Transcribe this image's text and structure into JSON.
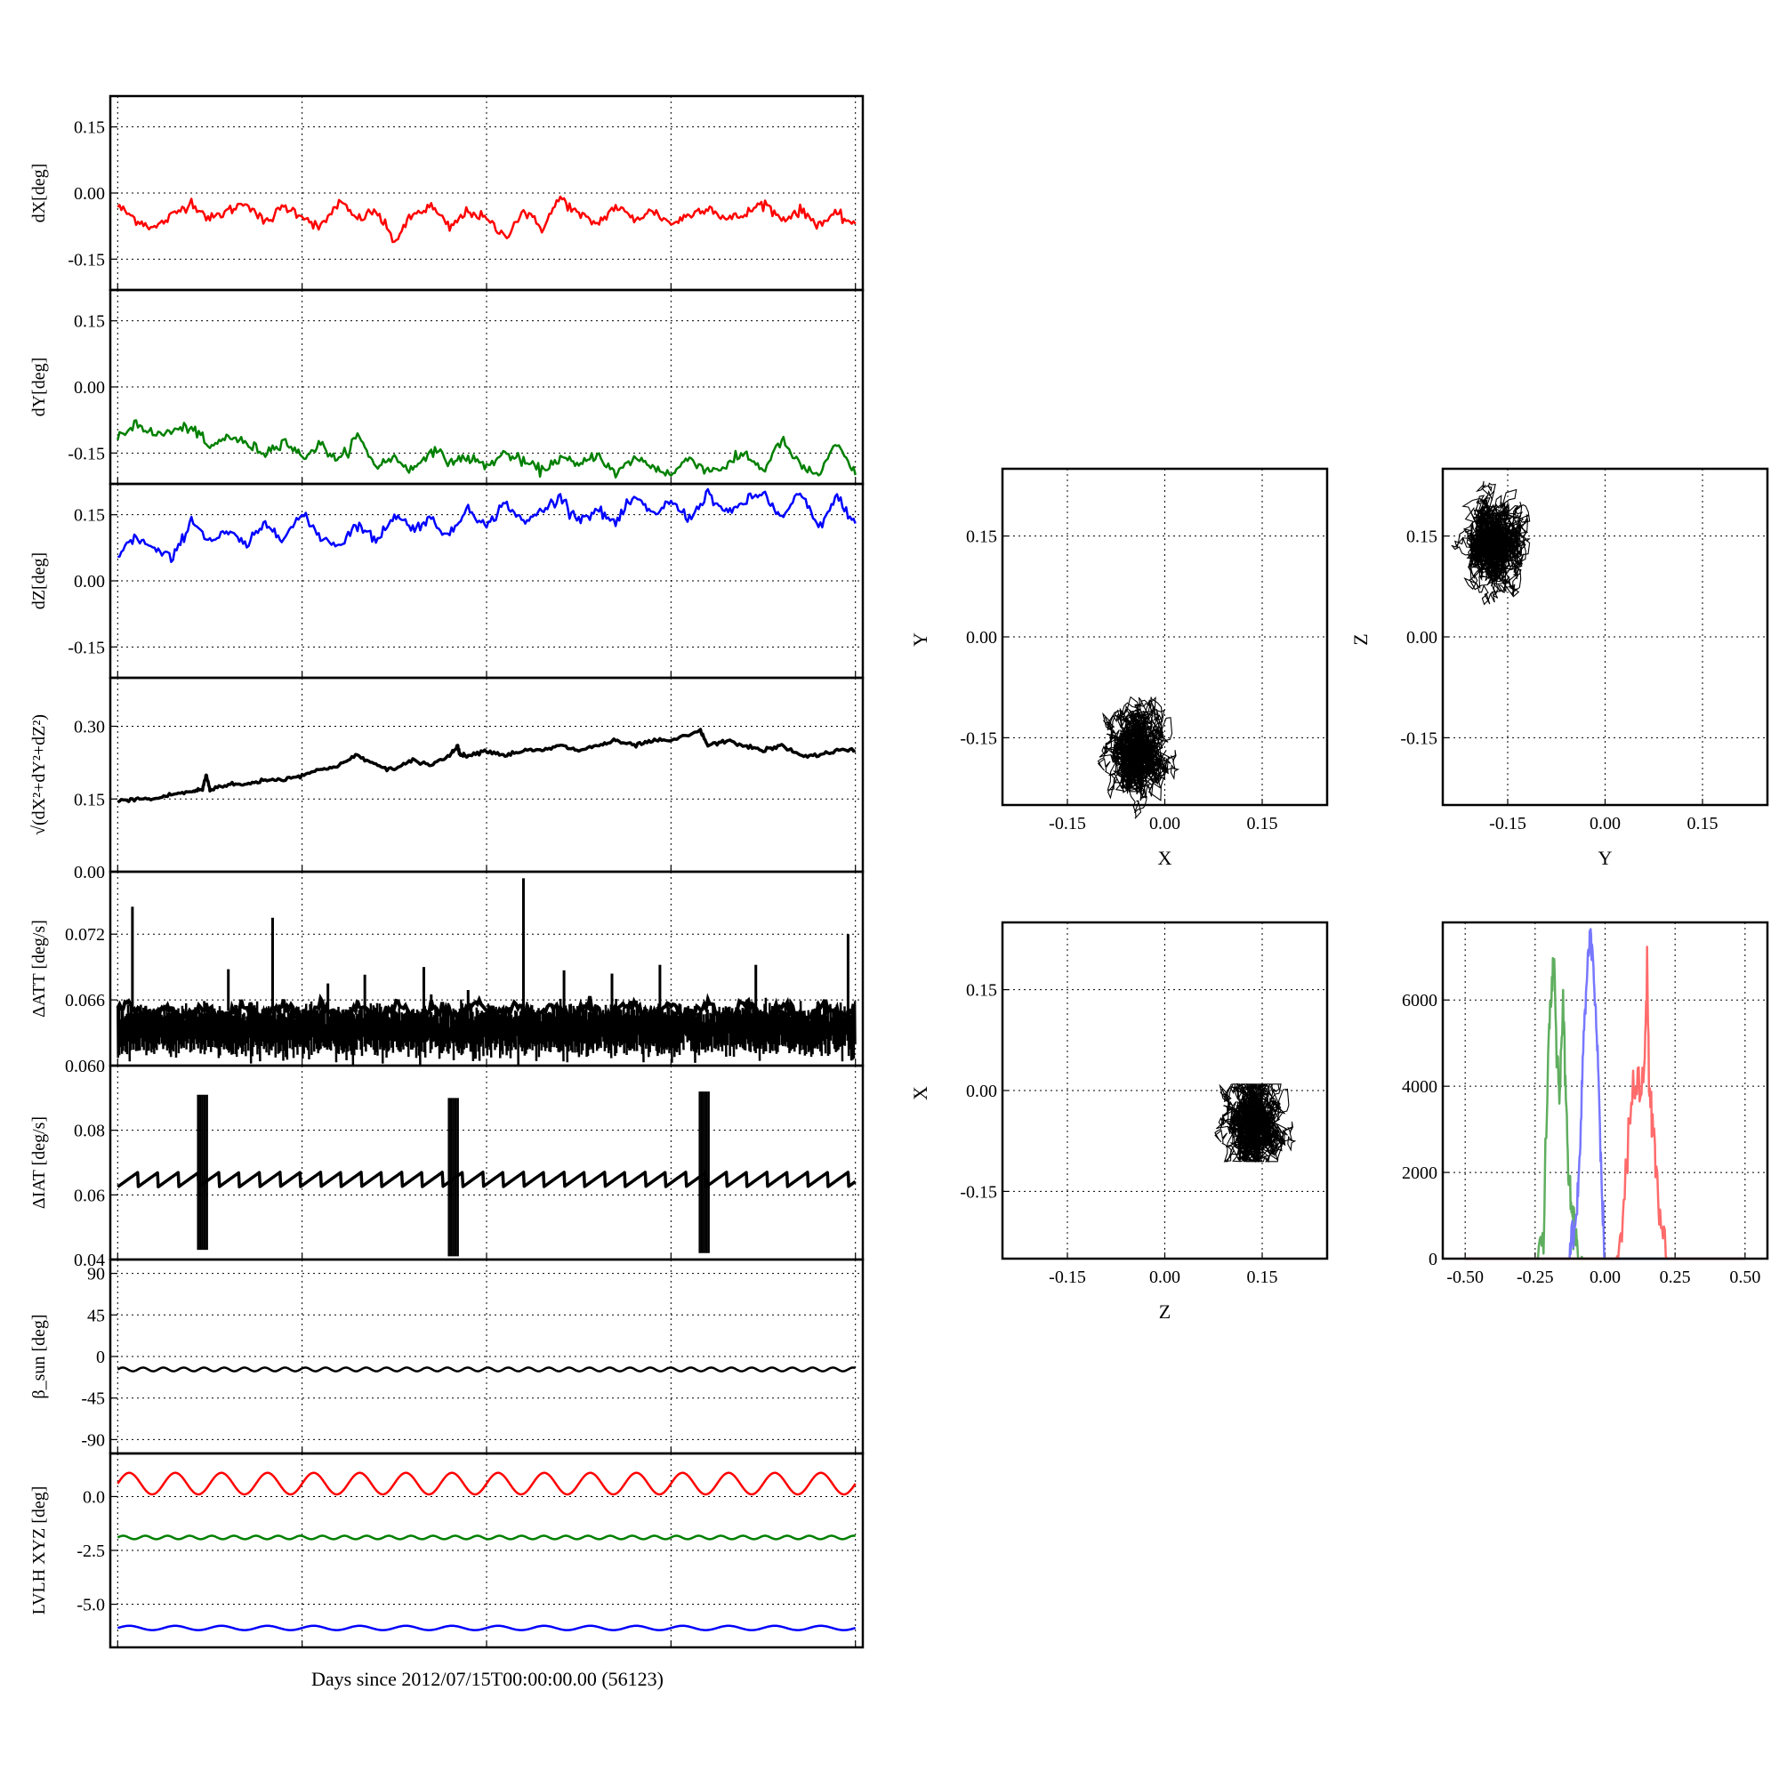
{
  "figure": {
    "xlabel": "Days since 2012/07/15T00:00:00.00 (56123)"
  },
  "colors": {
    "red": "#ff0000",
    "green": "#008000",
    "blue": "#0000ff",
    "black": "#000000"
  },
  "chart_data": [
    {
      "id": "dX",
      "type": "line",
      "ylabel": "dX[deg]",
      "ylim": [
        -0.22,
        0.22
      ],
      "yticks": [
        "0.15",
        "0.00",
        "-0.15"
      ],
      "ytick_values": [
        0.15,
        0,
        -0.15
      ],
      "grid": true,
      "series": [
        {
          "color": "#ff0000",
          "x": [
            0,
            0.5,
            1,
            1.5,
            2,
            2.5,
            3,
            3.5,
            4,
            4.5,
            5,
            5.5,
            6,
            6.5,
            7,
            7.5,
            8,
            8.5,
            9,
            9.5,
            10,
            10.5,
            11,
            11.5,
            12,
            12.5,
            13,
            13.5,
            14,
            14.5,
            15,
            15.5,
            16,
            16.5,
            17,
            17.5,
            18,
            18.5,
            19,
            19.5,
            20
          ],
          "y": [
            -0.03,
            -0.06,
            -0.08,
            -0.05,
            -0.02,
            -0.06,
            -0.04,
            -0.02,
            -0.07,
            -0.03,
            -0.05,
            -0.08,
            -0.02,
            -0.06,
            -0.04,
            -0.11,
            -0.05,
            -0.03,
            -0.08,
            -0.04,
            -0.06,
            -0.1,
            -0.04,
            -0.08,
            -0.01,
            -0.05,
            -0.07,
            -0.03,
            -0.06,
            -0.04,
            -0.07,
            -0.05,
            -0.03,
            -0.06,
            -0.05,
            -0.02,
            -0.06,
            -0.04,
            -0.07,
            -0.05,
            -0.07
          ]
        }
      ]
    },
    {
      "id": "dY",
      "type": "line",
      "ylabel": "dY[deg]",
      "ylim": [
        -0.22,
        0.22
      ],
      "yticks": [
        "0.15",
        "0.00",
        "-0.15"
      ],
      "ytick_values": [
        0.15,
        0,
        -0.15
      ],
      "grid": true,
      "series": [
        {
          "color": "#008000",
          "x": [
            0,
            0.5,
            1,
            1.5,
            2,
            2.5,
            3,
            3.5,
            4,
            4.5,
            5,
            5.5,
            6,
            6.5,
            7,
            7.5,
            8,
            8.5,
            9,
            9.5,
            10,
            10.5,
            11,
            11.5,
            12,
            12.5,
            13,
            13.5,
            14,
            14.5,
            15,
            15.5,
            16,
            16.5,
            17,
            17.5,
            18,
            18.5,
            19,
            19.5,
            20
          ],
          "y": [
            -0.12,
            -0.08,
            -0.11,
            -0.1,
            -0.09,
            -0.14,
            -0.11,
            -0.13,
            -0.15,
            -0.12,
            -0.16,
            -0.13,
            -0.17,
            -0.11,
            -0.18,
            -0.16,
            -0.19,
            -0.14,
            -0.17,
            -0.16,
            -0.18,
            -0.15,
            -0.17,
            -0.19,
            -0.16,
            -0.18,
            -0.15,
            -0.2,
            -0.16,
            -0.18,
            -0.2,
            -0.16,
            -0.19,
            -0.18,
            -0.15,
            -0.19,
            -0.12,
            -0.18,
            -0.2,
            -0.13,
            -0.2
          ]
        }
      ]
    },
    {
      "id": "dZ",
      "type": "line",
      "ylabel": "dZ[deg]",
      "ylim": [
        -0.22,
        0.22
      ],
      "yticks": [
        "0.15",
        "0.00",
        "-0.15"
      ],
      "ytick_values": [
        0.15,
        0,
        -0.15
      ],
      "grid": true,
      "series": [
        {
          "color": "#0000ff",
          "x": [
            0,
            0.5,
            1,
            1.5,
            2,
            2.5,
            3,
            3.5,
            4,
            4.5,
            5,
            5.5,
            6,
            6.5,
            7,
            7.5,
            8,
            8.5,
            9,
            9.5,
            10,
            10.5,
            11,
            11.5,
            12,
            12.5,
            13,
            13.5,
            14,
            14.5,
            15,
            15.5,
            16,
            16.5,
            17,
            17.5,
            18,
            18.5,
            19,
            19.5,
            20
          ],
          "y": [
            0.06,
            0.1,
            0.07,
            0.05,
            0.14,
            0.09,
            0.11,
            0.08,
            0.13,
            0.1,
            0.15,
            0.1,
            0.08,
            0.13,
            0.09,
            0.15,
            0.12,
            0.14,
            0.1,
            0.17,
            0.12,
            0.18,
            0.13,
            0.16,
            0.19,
            0.14,
            0.16,
            0.13,
            0.19,
            0.15,
            0.18,
            0.14,
            0.2,
            0.15,
            0.18,
            0.2,
            0.14,
            0.2,
            0.12,
            0.19,
            0.13
          ]
        }
      ]
    },
    {
      "id": "dR",
      "type": "line",
      "ylabel": "√(dX²+dY²+dZ²)",
      "ylim": [
        0,
        0.4
      ],
      "yticks": [
        "0.30",
        "0.15",
        "0.00"
      ],
      "ytick_values": [
        0.3,
        0.15,
        0
      ],
      "grid": true,
      "series": [
        {
          "color": "#000000",
          "x": [
            0,
            0.5,
            1,
            1.5,
            2,
            2.3,
            2.4,
            2.5,
            3,
            3.5,
            4,
            4.5,
            5,
            5.5,
            6,
            6.5,
            7,
            7.5,
            8,
            8.5,
            9,
            9.2,
            9.3,
            9.5,
            10,
            10.5,
            11,
            11.5,
            12,
            12.5,
            13,
            13.5,
            14,
            14.5,
            15,
            15.8,
            16,
            16.5,
            17,
            17.5,
            18,
            18.5,
            19,
            19.5,
            20
          ],
          "y": [
            0.145,
            0.15,
            0.15,
            0.16,
            0.165,
            0.17,
            0.2,
            0.17,
            0.18,
            0.18,
            0.19,
            0.19,
            0.2,
            0.21,
            0.22,
            0.24,
            0.22,
            0.21,
            0.23,
            0.22,
            0.24,
            0.26,
            0.24,
            0.24,
            0.25,
            0.24,
            0.25,
            0.25,
            0.26,
            0.25,
            0.26,
            0.27,
            0.26,
            0.27,
            0.27,
            0.29,
            0.26,
            0.27,
            0.26,
            0.25,
            0.26,
            0.24,
            0.24,
            0.25,
            0.25
          ]
        }
      ]
    },
    {
      "id": "dATT",
      "type": "line",
      "ylabel": "ΔATT [deg/s]",
      "ylim": [
        0.06,
        0.0777
      ],
      "yticks": [
        "0.072",
        "0.066",
        "0.060"
      ],
      "ytick_values": [
        0.072,
        0.066,
        0.06
      ],
      "grid": true,
      "band": {
        "low": 0.0615,
        "high": 0.065,
        "color": "#000000"
      },
      "spikes": [
        {
          "x": 0.4,
          "y": 0.0745
        },
        {
          "x": 3.0,
          "y": 0.0688
        },
        {
          "x": 4.2,
          "y": 0.0735
        },
        {
          "x": 5.7,
          "y": 0.0675
        },
        {
          "x": 6.7,
          "y": 0.0683
        },
        {
          "x": 8.3,
          "y": 0.069
        },
        {
          "x": 8.5,
          "y": 0.0665
        },
        {
          "x": 9.5,
          "y": 0.0669
        },
        {
          "x": 11.0,
          "y": 0.0771
        },
        {
          "x": 12.1,
          "y": 0.0687
        },
        {
          "x": 13.4,
          "y": 0.0684
        },
        {
          "x": 14.7,
          "y": 0.0692
        },
        {
          "x": 17.3,
          "y": 0.0692
        },
        {
          "x": 19.8,
          "y": 0.072
        }
      ]
    },
    {
      "id": "dIAT",
      "type": "line",
      "ylabel": "ΔIAT [deg/s]",
      "ylim": [
        0.04,
        0.1
      ],
      "yticks": [
        "0.08",
        "0.06",
        "0.04"
      ],
      "ytick_values": [
        0.08,
        0.06,
        0.04
      ],
      "grid": true,
      "series": [
        {
          "color": "#000000",
          "sawtooth": {
            "low": 0.0625,
            "high": 0.067,
            "period": 0.55
          }
        }
      ],
      "bursts": [
        {
          "x": 2.3,
          "ymin": 0.043,
          "ymax": 0.091
        },
        {
          "x": 9.1,
          "ymin": 0.041,
          "ymax": 0.09
        },
        {
          "x": 15.9,
          "ymin": 0.042,
          "ymax": 0.092
        }
      ]
    },
    {
      "id": "beta",
      "type": "line",
      "ylabel": "β_sun [deg]",
      "ylim": [
        -105,
        105
      ],
      "yticks": [
        "90",
        "45",
        "0",
        "-45",
        "-90"
      ],
      "ytick_values": [
        90,
        45,
        0,
        -45,
        -90
      ],
      "grid": true,
      "series": [
        {
          "color": "#000000",
          "wave": {
            "center": -14,
            "amp": 2,
            "period": 0.55
          }
        }
      ]
    },
    {
      "id": "lvlh",
      "type": "line",
      "ylabel": "LVLH XYZ [deg]",
      "ylim": [
        -7.0,
        2.0
      ],
      "yticks": [
        "0.0",
        "-2.5",
        "-5.0"
      ],
      "ytick_values": [
        0,
        -2.5,
        -5
      ],
      "grid": true,
      "series": [
        {
          "color": "#ff0000",
          "wave": {
            "center": 0.6,
            "amp": 0.5,
            "period": 1.25
          }
        },
        {
          "color": "#008000",
          "wave": {
            "center": -1.9,
            "amp": 0.08,
            "period": 0.6
          }
        },
        {
          "color": "#0000ff",
          "wave": {
            "center": -6.1,
            "amp": 0.1,
            "period": 1.25
          }
        }
      ]
    },
    {
      "id": "XY",
      "type": "scatter",
      "xlabel": "X",
      "ylabel": "Y",
      "xlim": [
        -0.25,
        0.25
      ],
      "ylim": [
        -0.25,
        0.25
      ],
      "ticks": [
        "-0.15",
        "0.00",
        "0.15"
      ],
      "tick_values": [
        -0.15,
        0,
        0.15
      ],
      "grid": true,
      "cloud": {
        "cx": -0.045,
        "cy": -0.17,
        "sx": 0.03,
        "sy": 0.048,
        "color": "#000000"
      }
    },
    {
      "id": "YZ",
      "type": "scatter",
      "xlabel": "Y",
      "ylabel": "Z",
      "xlim": [
        -0.25,
        0.25
      ],
      "ylim": [
        -0.25,
        0.25
      ],
      "ticks": [
        "-0.15",
        "0.00",
        "0.15"
      ],
      "tick_values": [
        -0.15,
        0,
        0.15
      ],
      "grid": true,
      "cloud": {
        "cx": -0.17,
        "cy": 0.135,
        "sx": 0.038,
        "sy": 0.042,
        "color": "#000000"
      }
    },
    {
      "id": "ZX",
      "type": "scatter",
      "xlabel": "Z",
      "ylabel": "X",
      "xlim": [
        -0.25,
        0.25
      ],
      "ylim": [
        -0.25,
        0.25
      ],
      "ticks": [
        "-0.15",
        "0.00",
        "0.15"
      ],
      "tick_values": [
        -0.15,
        0,
        0.15
      ],
      "grid": true,
      "cloud": {
        "cx": 0.135,
        "cy": -0.048,
        "sx": 0.045,
        "sy": 0.025,
        "color": "#000000"
      }
    },
    {
      "id": "hist",
      "type": "line",
      "xlim": [
        -0.58,
        0.58
      ],
      "ylim": [
        0,
        7800
      ],
      "xticks": [
        "-0.50",
        "-0.25",
        "0.00",
        "0.25",
        "0.50"
      ],
      "xtick_values": [
        -0.5,
        -0.25,
        0,
        0.25,
        0.5
      ],
      "yticks": [
        "6000",
        "4000",
        "2000",
        "0"
      ],
      "ytick_values": [
        6000,
        4000,
        2000,
        0
      ],
      "grid": true,
      "series": [
        {
          "color": "#008000",
          "x": [
            -0.5,
            -0.24,
            -0.22,
            -0.2,
            -0.19,
            -0.18,
            -0.17,
            -0.16,
            -0.15,
            -0.14,
            -0.13,
            -0.12,
            -0.11,
            -0.1,
            -0.08,
            0.5
          ],
          "y": [
            0,
            0,
            600,
            5200,
            6400,
            6700,
            4200,
            4000,
            5800,
            3800,
            1800,
            1200,
            700,
            300,
            0,
            0
          ]
        },
        {
          "color": "#0000ff",
          "x": [
            -0.5,
            -0.13,
            -0.12,
            -0.1,
            -0.09,
            -0.08,
            -0.07,
            -0.06,
            -0.05,
            -0.04,
            -0.03,
            -0.02,
            -0.01,
            0.0,
            0.5
          ],
          "y": [
            0,
            0,
            400,
            1000,
            2400,
            4400,
            5800,
            7400,
            7600,
            6400,
            5300,
            3600,
            1200,
            0,
            0
          ]
        },
        {
          "color": "#ff0000",
          "x": [
            -0.5,
            0.04,
            0.06,
            0.08,
            0.1,
            0.12,
            0.14,
            0.15,
            0.16,
            0.17,
            0.18,
            0.2,
            0.22,
            0.5
          ],
          "y": [
            0,
            0,
            600,
            2600,
            3800,
            4100,
            4200,
            6900,
            3600,
            3200,
            2200,
            700,
            0,
            0
          ]
        }
      ]
    }
  ]
}
